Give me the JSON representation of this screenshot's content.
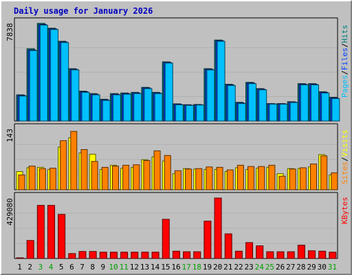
{
  "chart_data": {
    "type": "bar",
    "title": "Daily usage for January 2026",
    "categories": [
      "1",
      "2",
      "3",
      "4",
      "5",
      "6",
      "7",
      "8",
      "9",
      "10",
      "11",
      "12",
      "13",
      "14",
      "15",
      "16",
      "17",
      "18",
      "19",
      "20",
      "21",
      "22",
      "23",
      "24",
      "25",
      "26",
      "27",
      "28",
      "29",
      "30",
      "31"
    ],
    "weekend_days": [
      "3",
      "4",
      "10",
      "11",
      "17",
      "18",
      "24",
      "25",
      "31"
    ],
    "panels": [
      {
        "id": "hits-files-pages",
        "ymax_label": "7838",
        "ylim": [
          0,
          7838
        ],
        "label_parts": [
          "Pages",
          "/",
          "Files",
          "/",
          "Hits"
        ],
        "label_colors": [
          "#00c0ff",
          "#000000",
          "#0040ff",
          "#000000",
          "#008080"
        ],
        "series": [
          {
            "name": "Hits",
            "color": "#008080",
            "values": [
              2100,
              5800,
              7838,
              7450,
              6400,
              4200,
              2400,
              2200,
              1750,
              2200,
              2250,
              2300,
              2700,
              2300,
              4750,
              1380,
              1310,
              1330,
              4200,
              6500,
              2950,
              1500,
              3100,
              2600,
              1400,
              1400,
              1550,
              3000,
              3000,
              2350,
              1900
            ]
          },
          {
            "name": "Files",
            "color": "#0040ff",
            "values": [
              2050,
              5700,
              7750,
              7400,
              6350,
              4150,
              2350,
              2150,
              1700,
              2150,
              2200,
              2250,
              2650,
              2250,
              4700,
              1350,
              1280,
              1300,
              4150,
              6450,
              2900,
              1450,
              3050,
              2550,
              1380,
              1380,
              1520,
              2950,
              2950,
              2300,
              1850
            ]
          },
          {
            "name": "Pages",
            "color": "#00c0ff",
            "values": [
              2000,
              5650,
              7700,
              7350,
              6300,
              4100,
              2300,
              2100,
              1650,
              2100,
              2150,
              2200,
              2600,
              2200,
              4650,
              1300,
              1250,
              1280,
              4100,
              6400,
              2850,
              1400,
              3000,
              2500,
              1350,
              1350,
              1480,
              2900,
              2900,
              2250,
              1800
            ]
          }
        ]
      },
      {
        "id": "visits-sites",
        "ymax_label": "143",
        "ylim": [
          0,
          143
        ],
        "label_parts": [
          "Sites",
          "/",
          "Visits"
        ],
        "label_colors": [
          "#ff8000",
          "#000000",
          "#ffff00"
        ],
        "series": [
          {
            "name": "Visits",
            "color": "#ffff00",
            "values": [
              43,
              52,
              53,
              48,
              101,
              123,
              87,
              84,
              48,
              58,
              51,
              53,
              71,
              78,
              68,
              38,
              50,
              49,
              48,
              48,
              43,
              52,
              48,
              51,
              53,
              38,
              50,
              50,
              54,
              83,
              35
            ]
          },
          {
            "name": "Sites",
            "color": "#ff8000",
            "values": [
              35,
              56,
              50,
              51,
              116,
              138,
              95,
              67,
              53,
              56,
              58,
              59,
              69,
              92,
              81,
              45,
              49,
              50,
              54,
              53,
              47,
              58,
              55,
              55,
              58,
              32,
              49,
              52,
              61,
              80,
              40
            ]
          }
        ]
      },
      {
        "id": "kbytes",
        "ymax_label": "429080",
        "ylim": [
          0,
          429080
        ],
        "label_parts": [
          "KBytes"
        ],
        "label_colors": [
          "#ff0000"
        ],
        "series": [
          {
            "name": "KBytes",
            "color": "#ff0000",
            "values": [
              5000,
              128000,
              377000,
              377000,
              313000,
              35000,
              50000,
              50000,
              45000,
              45000,
              45000,
              45000,
              45000,
              45000,
              278000,
              52000,
              48000,
              48000,
              265000,
              429080,
              175000,
              52000,
              113000,
              90000,
              48000,
              48000,
              48000,
              95000,
              55000,
              52000,
              45000
            ]
          }
        ]
      }
    ]
  }
}
